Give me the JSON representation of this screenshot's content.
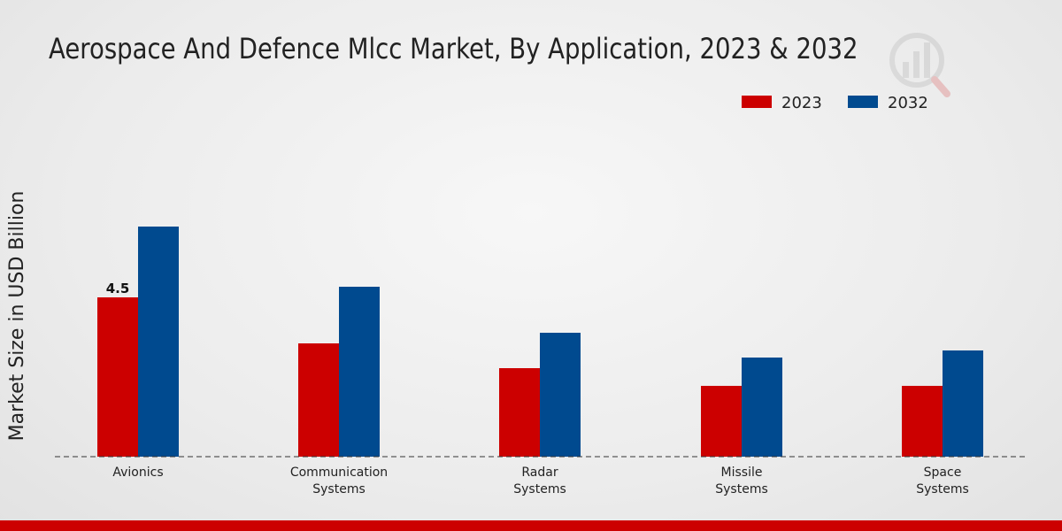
{
  "chart_data": {
    "type": "bar",
    "title": "Aerospace And Defence Mlcc Market, By Application, 2023 & 2032",
    "ylabel": "Market Size in USD Billion",
    "xlabel": "",
    "categories": [
      [
        "Avionics"
      ],
      [
        "Communication",
        "Systems"
      ],
      [
        "Radar",
        "Systems"
      ],
      [
        "Missile",
        "Systems"
      ],
      [
        "Space",
        "Systems"
      ]
    ],
    "series": [
      {
        "name": "2023",
        "color": "#cc0000",
        "values": [
          4.5,
          3.2,
          2.5,
          2.0,
          2.0
        ]
      },
      {
        "name": "2032",
        "color": "#004a8f",
        "values": [
          6.5,
          4.8,
          3.5,
          2.8,
          3.0
        ]
      }
    ],
    "data_labels": [
      {
        "series": 0,
        "category": 0,
        "text": "4.5"
      }
    ],
    "ylim": [
      0,
      12.5
    ],
    "grid": false,
    "legend_position": "top-right"
  }
}
